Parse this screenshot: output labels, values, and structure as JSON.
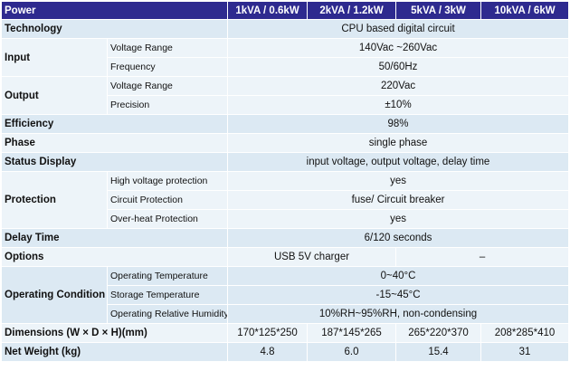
{
  "header": {
    "power": "Power",
    "models": [
      "1kVA / 0.6kW",
      "2kVA / 1.2kW",
      "5kVA / 3kW",
      "10kVA / 6kW"
    ]
  },
  "technology": {
    "label": "Technology",
    "value": "CPU based digital circuit"
  },
  "input": {
    "label": "Input",
    "voltage_range": {
      "label": "Voltage Range",
      "value": "140Vac ~260Vac"
    },
    "frequency": {
      "label": "Frequency",
      "value": "50/60Hz"
    }
  },
  "output": {
    "label": "Output",
    "voltage_range": {
      "label": "Voltage Range",
      "value": "220Vac"
    },
    "precision": {
      "label": "Precision",
      "value": "±10%"
    }
  },
  "efficiency": {
    "label": "Efficiency",
    "value": "98%"
  },
  "phase": {
    "label": "Phase",
    "value": "single phase"
  },
  "status_display": {
    "label": "Status Display",
    "value": "input voltage, output voltage, delay time"
  },
  "protection": {
    "label": "Protection",
    "high_voltage": {
      "label": "High voltage protection",
      "value": "yes"
    },
    "circuit": {
      "label": "Circuit Protection",
      "value": "fuse/ Circuit breaker"
    },
    "over_heat": {
      "label": "Over-heat Protection",
      "value": "yes"
    }
  },
  "delay_time": {
    "label": "Delay Time",
    "value": "6/120 seconds"
  },
  "options": {
    "label": "Options",
    "value_small": "USB 5V charger",
    "value_large": "–"
  },
  "operating_condition": {
    "label": "Operating Condition",
    "operating_temp": {
      "label": "Operating Temperature",
      "value": "0~40°C"
    },
    "storage_temp": {
      "label": "Storage Temperature",
      "value": "-15~45°C"
    },
    "humidity": {
      "label": "Operating Relative Humidity",
      "value": "10%RH~95%RH, non-condensing"
    }
  },
  "dimensions": {
    "label": "Dimensions (W × D × H)(mm)",
    "values": [
      "170*125*250",
      "187*145*265",
      "265*220*370",
      "208*285*410"
    ]
  },
  "net_weight": {
    "label": "Net Weight (kg)",
    "values": [
      "4.8",
      "6.0",
      "15.4",
      "31"
    ]
  }
}
